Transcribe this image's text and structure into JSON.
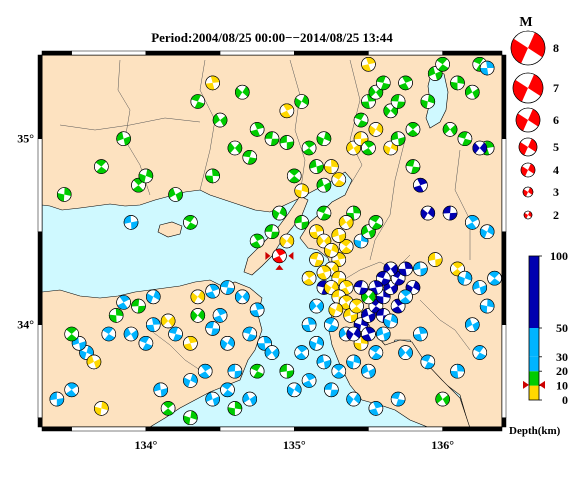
{
  "title": "Period:2004/08/25 00:00−−2014/08/25 13:44",
  "axes": {
    "x_ticks": [
      {
        "value": 134,
        "label": "134°"
      },
      {
        "value": 135,
        "label": "135°"
      },
      {
        "value": 136,
        "label": "136°"
      }
    ],
    "y_ticks": [
      {
        "value": 35,
        "label": "35°"
      },
      {
        "value": 34,
        "label": "34°"
      }
    ],
    "lon_range": [
      133.3,
      136.4
    ],
    "lat_range": [
      33.45,
      35.45
    ]
  },
  "magnitude_legend": {
    "label": "M",
    "entries": [
      "8",
      "7",
      "6",
      "5",
      "4",
      "3",
      "2"
    ]
  },
  "depth_scale": {
    "label": "Depth(km)",
    "ticks": [
      "100",
      "50",
      "30",
      "20",
      "10",
      "0"
    ],
    "bands": [
      {
        "from": 0,
        "to": 10,
        "color": "#ffd800"
      },
      {
        "from": 10,
        "to": 20,
        "color": "#00cc00"
      },
      {
        "from": 20,
        "to": 30,
        "color": "#00b4ff"
      },
      {
        "from": 30,
        "to": 50,
        "color": "#00b4ff"
      },
      {
        "from": 50,
        "to": 100,
        "color": "#0000b0"
      }
    ]
  },
  "colors": {
    "land": "#fde2c0",
    "sea": "#cff9ff",
    "shallow": "#ffd800",
    "mid": "#00cc00",
    "deep": "#00b4ff",
    "very_deep": "#0000b0",
    "legend_red": "#ff0000"
  },
  "main_event": {
    "lon": 134.9,
    "lat": 34.37,
    "color": "#ff0000",
    "marker": "star-icon"
  },
  "events": [
    {
      "lon": 133.4,
      "lat": 33.6,
      "depth": "deep"
    },
    {
      "lon": 133.5,
      "lat": 33.65,
      "depth": "deep"
    },
    {
      "lon": 133.6,
      "lat": 33.85,
      "depth": "deep"
    },
    {
      "lon": 133.55,
      "lat": 33.9,
      "depth": "deep"
    },
    {
      "lon": 133.5,
      "lat": 33.95,
      "depth": "mid"
    },
    {
      "lon": 133.7,
      "lat": 33.55,
      "depth": "shallow"
    },
    {
      "lon": 133.65,
      "lat": 33.8,
      "depth": "shallow"
    },
    {
      "lon": 133.75,
      "lat": 33.95,
      "depth": "deep"
    },
    {
      "lon": 133.8,
      "lat": 34.05,
      "depth": "mid"
    },
    {
      "lon": 133.9,
      "lat": 33.95,
      "depth": "deep"
    },
    {
      "lon": 134.0,
      "lat": 33.9,
      "depth": "deep"
    },
    {
      "lon": 134.05,
      "lat": 34.0,
      "depth": "deep"
    },
    {
      "lon": 134.15,
      "lat": 34.02,
      "depth": "shallow"
    },
    {
      "lon": 134.2,
      "lat": 33.95,
      "depth": "deep"
    },
    {
      "lon": 134.3,
      "lat": 33.9,
      "depth": "shallow"
    },
    {
      "lon": 134.35,
      "lat": 34.05,
      "depth": "mid"
    },
    {
      "lon": 134.45,
      "lat": 33.98,
      "depth": "deep"
    },
    {
      "lon": 134.5,
      "lat": 34.05,
      "depth": "deep"
    },
    {
      "lon": 134.55,
      "lat": 33.9,
      "depth": "deep"
    },
    {
      "lon": 134.6,
      "lat": 33.75,
      "depth": "deep"
    },
    {
      "lon": 134.4,
      "lat": 33.75,
      "depth": "deep"
    },
    {
      "lon": 134.3,
      "lat": 33.7,
      "depth": "deep"
    },
    {
      "lon": 134.1,
      "lat": 33.65,
      "depth": "deep"
    },
    {
      "lon": 134.15,
      "lat": 33.55,
      "depth": "mid"
    },
    {
      "lon": 134.3,
      "lat": 33.5,
      "depth": "mid"
    },
    {
      "lon": 134.45,
      "lat": 33.6,
      "depth": "deep"
    },
    {
      "lon": 134.55,
      "lat": 33.65,
      "depth": "deep"
    },
    {
      "lon": 134.6,
      "lat": 33.55,
      "depth": "mid"
    },
    {
      "lon": 134.7,
      "lat": 33.6,
      "depth": "deep"
    },
    {
      "lon": 134.75,
      "lat": 33.75,
      "depth": "mid"
    },
    {
      "lon": 134.8,
      "lat": 33.9,
      "depth": "deep"
    },
    {
      "lon": 134.85,
      "lat": 33.85,
      "depth": "deep"
    },
    {
      "lon": 134.7,
      "lat": 33.95,
      "depth": "deep"
    },
    {
      "lon": 134.75,
      "lat": 34.08,
      "depth": "deep"
    },
    {
      "lon": 134.65,
      "lat": 34.15,
      "depth": "deep"
    },
    {
      "lon": 134.55,
      "lat": 34.2,
      "depth": "deep"
    },
    {
      "lon": 134.45,
      "lat": 34.18,
      "depth": "deep"
    },
    {
      "lon": 134.35,
      "lat": 34.15,
      "depth": "shallow"
    },
    {
      "lon": 133.95,
      "lat": 34.1,
      "depth": "mid"
    },
    {
      "lon": 133.85,
      "lat": 34.12,
      "depth": "deep"
    },
    {
      "lon": 134.05,
      "lat": 34.15,
      "depth": "deep"
    },
    {
      "lon": 133.9,
      "lat": 34.55,
      "depth": "deep"
    },
    {
      "lon": 133.95,
      "lat": 34.75,
      "depth": "mid"
    },
    {
      "lon": 134.0,
      "lat": 34.8,
      "depth": "mid"
    },
    {
      "lon": 133.85,
      "lat": 35.0,
      "depth": "mid"
    },
    {
      "lon": 133.7,
      "lat": 34.85,
      "depth": "mid"
    },
    {
      "lon": 133.45,
      "lat": 34.7,
      "depth": "mid"
    },
    {
      "lon": 134.2,
      "lat": 34.7,
      "depth": "mid"
    },
    {
      "lon": 134.3,
      "lat": 34.55,
      "depth": "mid"
    },
    {
      "lon": 134.45,
      "lat": 34.8,
      "depth": "mid"
    },
    {
      "lon": 134.5,
      "lat": 35.1,
      "depth": "mid"
    },
    {
      "lon": 134.35,
      "lat": 35.2,
      "depth": "mid"
    },
    {
      "lon": 134.45,
      "lat": 35.3,
      "depth": "shallow"
    },
    {
      "lon": 134.6,
      "lat": 34.95,
      "depth": "mid"
    },
    {
      "lon": 134.7,
      "lat": 34.9,
      "depth": "mid"
    },
    {
      "lon": 134.75,
      "lat": 35.05,
      "depth": "mid"
    },
    {
      "lon": 134.65,
      "lat": 35.25,
      "depth": "mid"
    },
    {
      "lon": 134.85,
      "lat": 35.0,
      "depth": "mid"
    },
    {
      "lon": 134.95,
      "lat": 35.15,
      "depth": "shallow"
    },
    {
      "lon": 135.05,
      "lat": 35.2,
      "depth": "mid"
    },
    {
      "lon": 134.95,
      "lat": 34.98,
      "depth": "mid"
    },
    {
      "lon": 135.1,
      "lat": 34.95,
      "depth": "mid"
    },
    {
      "lon": 135.2,
      "lat": 35.0,
      "depth": "mid"
    },
    {
      "lon": 135.15,
      "lat": 34.85,
      "depth": "mid"
    },
    {
      "lon": 135.0,
      "lat": 34.8,
      "depth": "mid"
    },
    {
      "lon": 135.05,
      "lat": 34.72,
      "depth": "shallow"
    },
    {
      "lon": 135.2,
      "lat": 34.75,
      "depth": "mid"
    },
    {
      "lon": 135.3,
      "lat": 34.78,
      "depth": "shallow"
    },
    {
      "lon": 135.25,
      "lat": 34.85,
      "depth": "shallow"
    },
    {
      "lon": 135.4,
      "lat": 34.95,
      "depth": "shallow"
    },
    {
      "lon": 135.45,
      "lat": 35.1,
      "depth": "mid"
    },
    {
      "lon": 135.5,
      "lat": 35.2,
      "depth": "mid"
    },
    {
      "lon": 135.55,
      "lat": 35.25,
      "depth": "mid"
    },
    {
      "lon": 135.6,
      "lat": 35.3,
      "depth": "mid"
    },
    {
      "lon": 135.5,
      "lat": 35.4,
      "depth": "shallow"
    },
    {
      "lon": 135.65,
      "lat": 35.15,
      "depth": "mid"
    },
    {
      "lon": 135.7,
      "lat": 35.2,
      "depth": "mid"
    },
    {
      "lon": 135.75,
      "lat": 35.3,
      "depth": "mid"
    },
    {
      "lon": 135.55,
      "lat": 35.05,
      "depth": "shallow"
    },
    {
      "lon": 135.45,
      "lat": 35.0,
      "depth": "shallow"
    },
    {
      "lon": 135.5,
      "lat": 34.95,
      "depth": "mid"
    },
    {
      "lon": 135.65,
      "lat": 34.95,
      "depth": "shallow"
    },
    {
      "lon": 135.7,
      "lat": 35.0,
      "depth": "mid"
    },
    {
      "lon": 135.8,
      "lat": 35.05,
      "depth": "mid"
    },
    {
      "lon": 135.9,
      "lat": 35.2,
      "depth": "mid"
    },
    {
      "lon": 135.95,
      "lat": 35.35,
      "depth": "mid"
    },
    {
      "lon": 136.0,
      "lat": 35.4,
      "depth": "mid"
    },
    {
      "lon": 136.1,
      "lat": 35.3,
      "depth": "mid"
    },
    {
      "lon": 136.2,
      "lat": 35.25,
      "depth": "mid"
    },
    {
      "lon": 136.25,
      "lat": 35.4,
      "depth": "mid"
    },
    {
      "lon": 136.3,
      "lat": 35.38,
      "depth": "deep"
    },
    {
      "lon": 136.05,
      "lat": 35.05,
      "depth": "mid"
    },
    {
      "lon": 136.15,
      "lat": 35.0,
      "depth": "mid"
    },
    {
      "lon": 136.3,
      "lat": 34.95,
      "depth": "mid"
    },
    {
      "lon": 136.25,
      "lat": 34.95,
      "depth": "very_deep"
    },
    {
      "lon": 135.8,
      "lat": 34.85,
      "depth": "mid"
    },
    {
      "lon": 135.85,
      "lat": 34.75,
      "depth": "very_deep"
    },
    {
      "lon": 135.9,
      "lat": 34.6,
      "depth": "very_deep"
    },
    {
      "lon": 136.05,
      "lat": 34.6,
      "depth": "very_deep"
    },
    {
      "lon": 136.2,
      "lat": 34.55,
      "depth": "deep"
    },
    {
      "lon": 136.3,
      "lat": 34.5,
      "depth": "deep"
    },
    {
      "lon": 135.95,
      "lat": 34.35,
      "depth": "shallow"
    },
    {
      "lon": 136.1,
      "lat": 34.3,
      "depth": "shallow"
    },
    {
      "lon": 136.15,
      "lat": 34.25,
      "depth": "deep"
    },
    {
      "lon": 136.25,
      "lat": 34.2,
      "depth": "deep"
    },
    {
      "lon": 136.35,
      "lat": 34.25,
      "depth": "deep"
    },
    {
      "lon": 136.3,
      "lat": 34.1,
      "depth": "deep"
    },
    {
      "lon": 136.2,
      "lat": 34.0,
      "depth": "deep"
    },
    {
      "lon": 136.25,
      "lat": 33.85,
      "depth": "deep"
    },
    {
      "lon": 136.1,
      "lat": 33.75,
      "depth": "deep"
    },
    {
      "lon": 136.0,
      "lat": 33.6,
      "depth": "mid"
    },
    {
      "lon": 135.9,
      "lat": 33.8,
      "depth": "deep"
    },
    {
      "lon": 135.85,
      "lat": 33.95,
      "depth": "deep"
    },
    {
      "lon": 135.75,
      "lat": 33.85,
      "depth": "deep"
    },
    {
      "lon": 135.7,
      "lat": 33.6,
      "depth": "deep"
    },
    {
      "lon": 135.55,
      "lat": 33.55,
      "depth": "deep"
    },
    {
      "lon": 135.4,
      "lat": 33.6,
      "depth": "deep"
    },
    {
      "lon": 135.25,
      "lat": 33.65,
      "depth": "deep"
    },
    {
      "lon": 135.1,
      "lat": 33.7,
      "depth": "deep"
    },
    {
      "lon": 135.0,
      "lat": 33.65,
      "depth": "deep"
    },
    {
      "lon": 134.95,
      "lat": 33.75,
      "depth": "mid"
    },
    {
      "lon": 135.05,
      "lat": 33.85,
      "depth": "deep"
    },
    {
      "lon": 135.15,
      "lat": 33.9,
      "depth": "deep"
    },
    {
      "lon": 135.2,
      "lat": 33.8,
      "depth": "deep"
    },
    {
      "lon": 135.3,
      "lat": 33.75,
      "depth": "deep"
    },
    {
      "lon": 135.4,
      "lat": 33.8,
      "depth": "deep"
    },
    {
      "lon": 135.5,
      "lat": 33.75,
      "depth": "deep"
    },
    {
      "lon": 135.55,
      "lat": 33.85,
      "depth": "deep"
    },
    {
      "lon": 135.45,
      "lat": 33.9,
      "depth": "shallow"
    },
    {
      "lon": 135.35,
      "lat": 33.95,
      "depth": "deep"
    },
    {
      "lon": 135.25,
      "lat": 34.0,
      "depth": "deep"
    },
    {
      "lon": 135.1,
      "lat": 34.0,
      "depth": "deep"
    },
    {
      "lon": 135.15,
      "lat": 34.1,
      "depth": "deep"
    },
    {
      "lon": 135.2,
      "lat": 34.2,
      "depth": "very_deep"
    },
    {
      "lon": 135.3,
      "lat": 34.35,
      "depth": "shallow"
    },
    {
      "lon": 135.25,
      "lat": 34.3,
      "depth": "shallow"
    },
    {
      "lon": 135.3,
      "lat": 34.25,
      "depth": "shallow"
    },
    {
      "lon": 135.35,
      "lat": 34.2,
      "depth": "shallow"
    },
    {
      "lon": 135.25,
      "lat": 34.2,
      "depth": "shallow"
    },
    {
      "lon": 135.3,
      "lat": 34.15,
      "depth": "shallow"
    },
    {
      "lon": 135.35,
      "lat": 34.12,
      "depth": "shallow"
    },
    {
      "lon": 135.28,
      "lat": 34.08,
      "depth": "shallow"
    },
    {
      "lon": 135.38,
      "lat": 34.05,
      "depth": "shallow"
    },
    {
      "lon": 135.42,
      "lat": 34.1,
      "depth": "shallow"
    },
    {
      "lon": 135.45,
      "lat": 34.0,
      "depth": "very_deep"
    },
    {
      "lon": 135.5,
      "lat": 34.05,
      "depth": "very_deep"
    },
    {
      "lon": 135.55,
      "lat": 34.1,
      "depth": "very_deep"
    },
    {
      "lon": 135.6,
      "lat": 34.15,
      "depth": "very_deep"
    },
    {
      "lon": 135.65,
      "lat": 34.2,
      "depth": "very_deep"
    },
    {
      "lon": 135.7,
      "lat": 34.25,
      "depth": "very_deep"
    },
    {
      "lon": 135.75,
      "lat": 34.3,
      "depth": "very_deep"
    },
    {
      "lon": 135.65,
      "lat": 34.3,
      "depth": "very_deep"
    },
    {
      "lon": 135.6,
      "lat": 34.25,
      "depth": "very_deep"
    },
    {
      "lon": 135.55,
      "lat": 34.2,
      "depth": "very_deep"
    },
    {
      "lon": 135.5,
      "lat": 34.15,
      "depth": "mid"
    },
    {
      "lon": 135.45,
      "lat": 34.2,
      "depth": "very_deep"
    },
    {
      "lon": 135.5,
      "lat": 33.95,
      "depth": "very_deep"
    },
    {
      "lon": 135.4,
      "lat": 33.95,
      "depth": "very_deep"
    },
    {
      "lon": 135.6,
      "lat": 34.05,
      "depth": "very_deep"
    },
    {
      "lon": 135.7,
      "lat": 34.1,
      "depth": "very_deep"
    },
    {
      "lon": 135.8,
      "lat": 34.2,
      "depth": "very_deep"
    },
    {
      "lon": 135.85,
      "lat": 34.3,
      "depth": "deep"
    },
    {
      "lon": 135.75,
      "lat": 34.15,
      "depth": "deep"
    },
    {
      "lon": 135.65,
      "lat": 34.02,
      "depth": "deep"
    },
    {
      "lon": 135.6,
      "lat": 33.95,
      "depth": "deep"
    },
    {
      "lon": 135.35,
      "lat": 34.42,
      "depth": "shallow"
    },
    {
      "lon": 135.45,
      "lat": 34.45,
      "depth": "deep"
    },
    {
      "lon": 135.5,
      "lat": 34.5,
      "depth": "mid"
    },
    {
      "lon": 135.55,
      "lat": 34.55,
      "depth": "mid"
    },
    {
      "lon": 135.4,
      "lat": 34.6,
      "depth": "mid"
    },
    {
      "lon": 135.35,
      "lat": 34.55,
      "depth": "shallow"
    },
    {
      "lon": 135.2,
      "lat": 34.6,
      "depth": "mid"
    },
    {
      "lon": 135.15,
      "lat": 34.5,
      "depth": "shallow"
    },
    {
      "lon": 135.2,
      "lat": 34.45,
      "depth": "shallow"
    },
    {
      "lon": 135.15,
      "lat": 34.35,
      "depth": "shallow"
    },
    {
      "lon": 135.2,
      "lat": 34.28,
      "depth": "shallow"
    },
    {
      "lon": 134.95,
      "lat": 34.45,
      "depth": "shallow"
    },
    {
      "lon": 134.85,
      "lat": 34.5,
      "depth": "mid"
    },
    {
      "lon": 134.75,
      "lat": 34.45,
      "depth": "mid"
    },
    {
      "lon": 134.9,
      "lat": 34.6,
      "depth": "mid"
    },
    {
      "lon": 135.05,
      "lat": 34.55,
      "depth": "mid"
    },
    {
      "lon": 135.1,
      "lat": 34.25,
      "depth": "shallow"
    },
    {
      "lon": 135.25,
      "lat": 34.4,
      "depth": "shallow"
    },
    {
      "lon": 135.3,
      "lat": 34.48,
      "depth": "shallow"
    }
  ]
}
